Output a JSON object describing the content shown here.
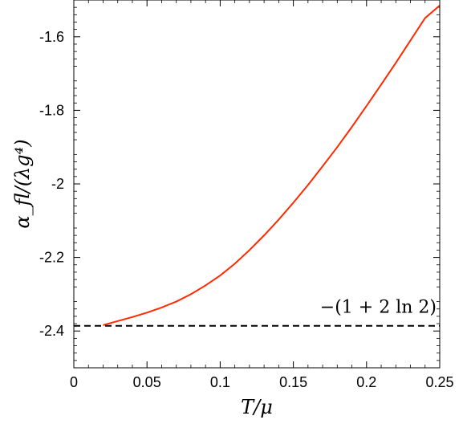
{
  "chart_data": {
    "type": "line",
    "xlabel": "T/μ",
    "ylabel": "α_fl/(λg⁴)",
    "xlim": [
      0,
      0.25
    ],
    "ylim": [
      -2.5,
      -1.5
    ],
    "x_ticks": [
      "0",
      "0.05",
      "0.1",
      "0.15",
      "0.2",
      "0.25"
    ],
    "y_ticks": [
      "-2.4",
      "-2.2",
      "-2",
      "-1.8",
      "-1.6"
    ],
    "grid": false,
    "series": [
      {
        "color": "#ff2a00",
        "style": "solid",
        "x": [
          0.02,
          0.03,
          0.04,
          0.05,
          0.06,
          0.07,
          0.08,
          0.09,
          0.1,
          0.11,
          0.12,
          0.13,
          0.14,
          0.15,
          0.16,
          0.17,
          0.18,
          0.19,
          0.2,
          0.21,
          0.22,
          0.23,
          0.24,
          0.25
        ],
        "y": [
          -2.384,
          -2.373,
          -2.362,
          -2.35,
          -2.336,
          -2.32,
          -2.3,
          -2.276,
          -2.249,
          -2.217,
          -2.18,
          -2.14,
          -2.097,
          -2.051,
          -2.003,
          -1.952,
          -1.9,
          -1.845,
          -1.788,
          -1.73,
          -1.671,
          -1.61,
          -1.549,
          -1.515
        ]
      },
      {
        "color": "#000000",
        "style": "dashed",
        "x": [
          0,
          0.25
        ],
        "y": [
          -2.386,
          -2.386
        ]
      }
    ],
    "annotations": [
      {
        "text": "−(1 + 2 ln 2)",
        "x": 0.208,
        "y": -2.333
      }
    ]
  }
}
